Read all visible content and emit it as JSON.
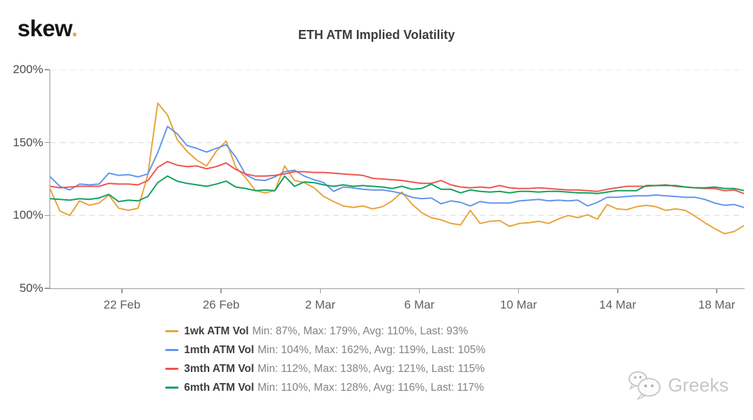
{
  "header": {
    "logo_text": "skew",
    "logo_dot": "."
  },
  "watermark": {
    "label": "Greeks",
    "icon": "wechat-icon"
  },
  "chart_data": {
    "type": "line",
    "title": "ETH ATM Implied Volatility",
    "xlabel": "",
    "ylabel": "",
    "ylim": [
      50,
      200
    ],
    "yticks": [
      "200%",
      "150%",
      "100%",
      "50%"
    ],
    "ytick_values": [
      200,
      150,
      100,
      50
    ],
    "xticks": [
      "22 Feb",
      "26 Feb",
      "2 Mar",
      "6 Mar",
      "10 Mar",
      "14 Mar",
      "18 Mar"
    ],
    "grid": "horizontal-dashed",
    "legend_position": "bottom",
    "series": [
      {
        "name": "1wk ATM Vol",
        "color": "#E8A33D",
        "stats_text": "Min: 87%, Max: 179%, Avg: 110%, Last: 93%",
        "stats": {
          "min": "87%",
          "max": "179%",
          "avg": "110%",
          "last": "93%"
        },
        "values": [
          118,
          103,
          100,
          110,
          107,
          108.5,
          114,
          105,
          103.5,
          105,
          128,
          177,
          169,
          152,
          144,
          138,
          134,
          144,
          151,
          133,
          126,
          117,
          115.5,
          117,
          134,
          124,
          122.5,
          119,
          113,
          109.5,
          106.5,
          105.5,
          106.5,
          104.5,
          106,
          110,
          116,
          108,
          102,
          98.5,
          97,
          94.5,
          93.5,
          103.5,
          94.5,
          96,
          96.5,
          92.5,
          94.5,
          95,
          96,
          94.5,
          97.5,
          100,
          98.5,
          100.5,
          97.5,
          107.5,
          104.5,
          104,
          106,
          107,
          106,
          103.5,
          104.5,
          103.5,
          99.5,
          95,
          91,
          87.5,
          89,
          93
        ]
      },
      {
        "name": "1mth ATM Vol",
        "color": "#6295EC",
        "stats_text": "Min: 104%, Max: 162%, Avg: 119%, Last: 105%",
        "stats": {
          "min": "104%",
          "max": "162%",
          "avg": "119%",
          "last": "105%"
        },
        "values": [
          126.5,
          120,
          117.5,
          121.5,
          121,
          121.5,
          129,
          127.5,
          128,
          126.5,
          128.5,
          143,
          161,
          156,
          148,
          146,
          143.5,
          146,
          148.5,
          140,
          128,
          124.5,
          124,
          126.5,
          130,
          131,
          127,
          124.5,
          122.5,
          116.5,
          119.5,
          119,
          118,
          117.5,
          117.5,
          116.5,
          115,
          112.5,
          111.5,
          112,
          108,
          110,
          109,
          106.5,
          109.5,
          108.5,
          108.5,
          108.5,
          110,
          110.5,
          111,
          110,
          110.5,
          110,
          110.5,
          106.5,
          109,
          112.5,
          112.5,
          113,
          113.5,
          113.5,
          114,
          113.5,
          113,
          112.5,
          112.5,
          111,
          108.5,
          107,
          107.5,
          105.5
        ]
      },
      {
        "name": "3mth ATM Vol",
        "color": "#F0544F",
        "stats_text": "Min: 112%, Max: 138%, Avg: 121%, Last: 115%",
        "stats": {
          "min": "112%",
          "max": "138%",
          "avg": "121%",
          "last": "115%"
        },
        "values": [
          120,
          119,
          119.5,
          120,
          120,
          120,
          122,
          121.5,
          121.5,
          121,
          124,
          133,
          137,
          134.5,
          133.5,
          134,
          132,
          133.5,
          136,
          131.5,
          128.5,
          127,
          127,
          127.5,
          128.5,
          130,
          130,
          129.5,
          129.5,
          129,
          128.5,
          128,
          127.5,
          125.5,
          125,
          124.5,
          124,
          123,
          122,
          122,
          124,
          121,
          119.5,
          119,
          119.5,
          119,
          120.5,
          119,
          118.5,
          118.5,
          119,
          118.5,
          118,
          117.5,
          117.5,
          117,
          116.5,
          118,
          119,
          120,
          120,
          120,
          120.5,
          121,
          120,
          119.5,
          119,
          118.5,
          118.5,
          117,
          117.5,
          115
        ]
      },
      {
        "name": "6mth ATM Vol",
        "color": "#12A15F",
        "stats_text": "Min: 110%, Max: 128%, Avg: 116%, Last: 117%",
        "stats": {
          "min": "110%",
          "max": "128%",
          "avg": "116%",
          "last": "117%"
        },
        "values": [
          111.5,
          111,
          110.5,
          111.5,
          111,
          112,
          114.5,
          109.5,
          110.5,
          110,
          113,
          122.5,
          127,
          123.5,
          122,
          121,
          120,
          121.5,
          123.5,
          119.5,
          118.5,
          117,
          117.5,
          117,
          127,
          120,
          123,
          122.5,
          121,
          120,
          121,
          120,
          120.5,
          120,
          119.5,
          118.5,
          120,
          118,
          118.5,
          121.5,
          118,
          118,
          115.5,
          117.5,
          116.5,
          116,
          116.5,
          115.5,
          116.5,
          116.5,
          116,
          116.5,
          116.5,
          116,
          115.5,
          115.5,
          115,
          116,
          117,
          117,
          117,
          120.5,
          120.5,
          120.5,
          120.5,
          119.5,
          119,
          119,
          119.5,
          118.5,
          118.5,
          117
        ]
      }
    ]
  }
}
